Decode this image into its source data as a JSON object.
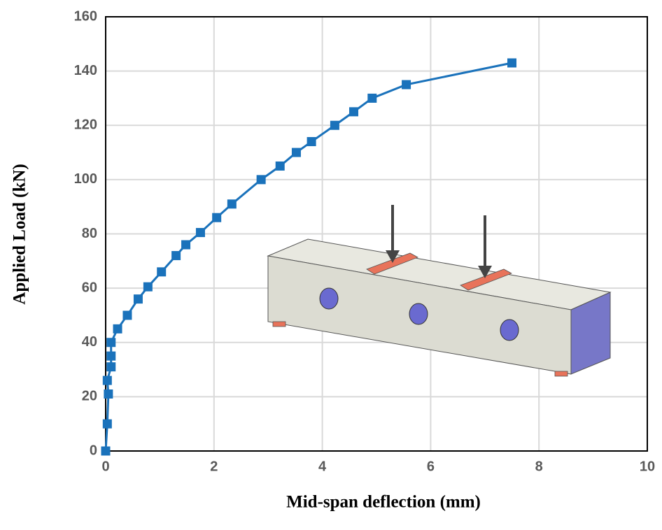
{
  "chart_data": {
    "type": "line",
    "x_label": "Mid-span deflection (mm)",
    "y_label": "Applied Load (kN)",
    "xlim": [
      0,
      10
    ],
    "xticks": [
      0,
      2,
      4,
      6,
      8,
      10
    ],
    "ylim": [
      0,
      160
    ],
    "yticks": [
      0,
      20,
      40,
      60,
      80,
      100,
      120,
      140,
      160
    ],
    "grid": true,
    "series": [
      {
        "color": "#1a72bb",
        "x": [
          0,
          0.03,
          0.05,
          0.03,
          0.1,
          0.1,
          0.1,
          0.22,
          0.4,
          0.6,
          0.78,
          1.03,
          1.3,
          1.48,
          1.75,
          2.05,
          2.33,
          2.87,
          3.22,
          3.52,
          3.8,
          4.23,
          4.58,
          4.92,
          5.55,
          7.5
        ],
        "values": [
          0,
          10,
          21,
          26,
          31,
          35,
          40,
          45,
          50,
          56,
          60.5,
          66,
          72,
          76,
          80.5,
          86,
          91,
          100,
          105,
          110,
          114,
          120,
          125,
          130,
          135,
          143
        ]
      }
    ]
  }
}
